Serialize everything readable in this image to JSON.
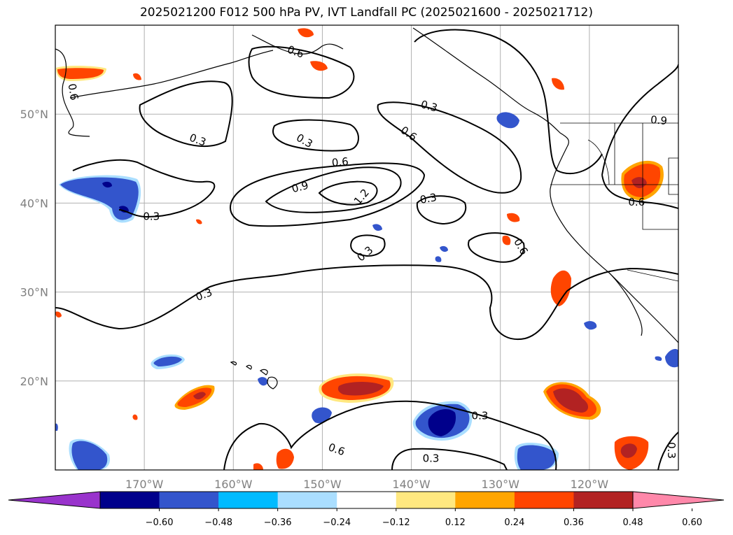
{
  "title": "2025021200 F012 500 hPa PV, IVT Landfall PC (2025021600 - 2025021712)",
  "map": {
    "lon_range": [
      -180,
      -110
    ],
    "lat_range": [
      10,
      60
    ],
    "lat_ticks": [
      {
        "lat": 50,
        "label": "50°N"
      },
      {
        "lat": 40,
        "label": "40°N"
      },
      {
        "lat": 30,
        "label": "30°N"
      },
      {
        "lat": 20,
        "label": "20°N"
      }
    ],
    "lon_ticks": [
      {
        "lon": -170,
        "label": "170°W"
      },
      {
        "lon": -160,
        "label": "160°W"
      },
      {
        "lon": -150,
        "label": "150°W"
      },
      {
        "lon": -140,
        "label": "140°W"
      },
      {
        "lon": -130,
        "label": "130°W"
      },
      {
        "lon": -120,
        "label": "120°W"
      }
    ],
    "gridlines": true
  },
  "contour_labels": [
    {
      "text": "0.6",
      "lon": -153,
      "lat": 57.0,
      "rot": 20
    },
    {
      "text": "0.6",
      "lon": -178,
      "lat": 52.5,
      "rot": 80
    },
    {
      "text": "0.3",
      "lon": -138,
      "lat": 50.9,
      "rot": 15
    },
    {
      "text": "0.9",
      "lon": -112.2,
      "lat": 49.3,
      "rot": 5
    },
    {
      "text": "0.3",
      "lon": -164,
      "lat": 47.1,
      "rot": 20
    },
    {
      "text": "0.3",
      "lon": -152,
      "lat": 47.0,
      "rot": 30
    },
    {
      "text": "0.6",
      "lon": -140.3,
      "lat": 47.8,
      "rot": 35
    },
    {
      "text": "0.6",
      "lon": -148,
      "lat": 44.6,
      "rot": -5
    },
    {
      "text": "0.9",
      "lon": -152.5,
      "lat": 41.8,
      "rot": -15
    },
    {
      "text": "1.2",
      "lon": -145.6,
      "lat": 40.7,
      "rot": -50
    },
    {
      "text": "0.3",
      "lon": -138.1,
      "lat": 40.5,
      "rot": -10
    },
    {
      "text": "0.6",
      "lon": -114.7,
      "lat": 40.1,
      "rot": 0
    },
    {
      "text": "0.3",
      "lon": -169.2,
      "lat": 38.5,
      "rot": 0
    },
    {
      "text": "0.6",
      "lon": -127.7,
      "lat": 35.1,
      "rot": 60
    },
    {
      "text": "0.3",
      "lon": -145.2,
      "lat": 34.3,
      "rot": -40
    },
    {
      "text": "0.3",
      "lon": -163.3,
      "lat": 29.7,
      "rot": -20
    },
    {
      "text": "0.3",
      "lon": -132.3,
      "lat": 16.1,
      "rot": 0
    },
    {
      "text": "0.6",
      "lon": -148.4,
      "lat": 12.3,
      "rot": 20
    },
    {
      "text": "0.3",
      "lon": -137.8,
      "lat": 11.3,
      "rot": 0
    },
    {
      "text": "0.3",
      "lon": -110.8,
      "lat": 12.2,
      "rot": 90
    }
  ],
  "colorbar": {
    "colors": [
      "#9933cc",
      "#00008b",
      "#3355cc",
      "#00bbff",
      "#aadeff",
      "#ffffff",
      "#ffe880",
      "#ffa500",
      "#ff4500",
      "#b22222",
      "#ff88aa"
    ],
    "tick_labels": [
      "−0.60",
      "−0.48",
      "−0.36",
      "−0.24",
      "−0.12",
      "0.12",
      "0.24",
      "0.36",
      "0.48",
      "0.60"
    ],
    "extend": "both"
  }
}
